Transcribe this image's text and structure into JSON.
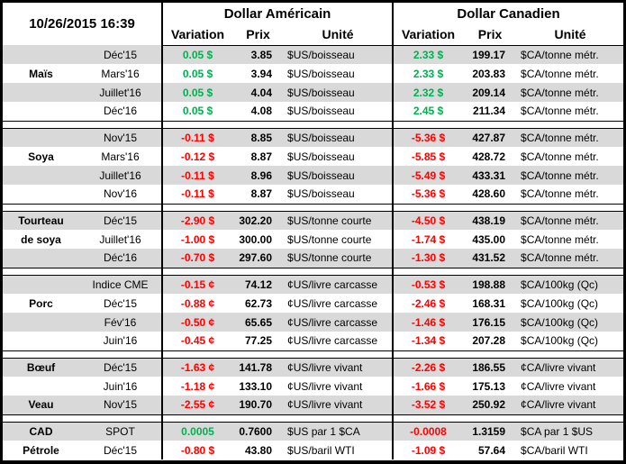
{
  "colors": {
    "positive": "#00B050",
    "negative": "#FF0000",
    "stripe": "#D9D9D9",
    "border": "#000000"
  },
  "header": {
    "timestamp": "10/26/2015 16:39",
    "group_us": "Dollar Américain",
    "group_ca": "Dollar Canadien",
    "col_variation": "Variation",
    "col_prix": "Prix",
    "col_unite": "Unité"
  },
  "sections": [
    {
      "rows": [
        {
          "name": "",
          "month": "Déc'15",
          "us_var": "0.05 $",
          "us_trend": "up",
          "us_prix": "3.85",
          "us_unit": "$US/boisseau",
          "ca_var": "2.33 $",
          "ca_trend": "up",
          "ca_prix": "199.17",
          "ca_unit": "$CA/tonne métr."
        },
        {
          "name": "Maïs",
          "month": "Mars'16",
          "us_var": "0.05 $",
          "us_trend": "up",
          "us_prix": "3.94",
          "us_unit": "$US/boisseau",
          "ca_var": "2.33 $",
          "ca_trend": "up",
          "ca_prix": "203.83",
          "ca_unit": "$CA/tonne métr."
        },
        {
          "name": "",
          "month": "Juillet'16",
          "us_var": "0.05 $",
          "us_trend": "up",
          "us_prix": "4.04",
          "us_unit": "$US/boisseau",
          "ca_var": "2.32 $",
          "ca_trend": "up",
          "ca_prix": "209.14",
          "ca_unit": "$CA/tonne métr."
        },
        {
          "name": "",
          "month": "Déc'16",
          "us_var": "0.05 $",
          "us_trend": "up",
          "us_prix": "4.08",
          "us_unit": "$US/boisseau",
          "ca_var": "2.45 $",
          "ca_trend": "up",
          "ca_prix": "211.34",
          "ca_unit": "$CA/tonne métr."
        }
      ]
    },
    {
      "rows": [
        {
          "name": "",
          "month": "Nov'15",
          "us_var": "-0.11 $",
          "us_trend": "down",
          "us_prix": "8.85",
          "us_unit": "$US/boisseau",
          "ca_var": "-5.36 $",
          "ca_trend": "down",
          "ca_prix": "427.87",
          "ca_unit": "$CA/tonne métr."
        },
        {
          "name": "Soya",
          "month": "Mars'16",
          "us_var": "-0.12 $",
          "us_trend": "down",
          "us_prix": "8.87",
          "us_unit": "$US/boisseau",
          "ca_var": "-5.85 $",
          "ca_trend": "down",
          "ca_prix": "428.72",
          "ca_unit": "$CA/tonne métr."
        },
        {
          "name": "",
          "month": "Juillet'16",
          "us_var": "-0.11 $",
          "us_trend": "down",
          "us_prix": "8.96",
          "us_unit": "$US/boisseau",
          "ca_var": "-5.49 $",
          "ca_trend": "down",
          "ca_prix": "433.31",
          "ca_unit": "$CA/tonne métr."
        },
        {
          "name": "",
          "month": "Nov'16",
          "us_var": "-0.11 $",
          "us_trend": "down",
          "us_prix": "8.87",
          "us_unit": "$US/boisseau",
          "ca_var": "-5.36 $",
          "ca_trend": "down",
          "ca_prix": "428.60",
          "ca_unit": "$CA/tonne métr."
        }
      ]
    },
    {
      "rows": [
        {
          "name": "Tourteau",
          "month": "Déc'15",
          "us_var": "-2.90 $",
          "us_trend": "down",
          "us_prix": "302.20",
          "us_unit": "$US/tonne courte",
          "ca_var": "-4.50 $",
          "ca_trend": "down",
          "ca_prix": "438.19",
          "ca_unit": "$CA/tonne métr."
        },
        {
          "name": "de soya",
          "month": "Juillet'16",
          "us_var": "-1.00 $",
          "us_trend": "down",
          "us_prix": "300.00",
          "us_unit": "$US/tonne courte",
          "ca_var": "-1.74 $",
          "ca_trend": "down",
          "ca_prix": "435.00",
          "ca_unit": "$CA/tonne métr."
        },
        {
          "name": "",
          "month": "Déc'16",
          "us_var": "-0.70 $",
          "us_trend": "down",
          "us_prix": "297.60",
          "us_unit": "$US/tonne courte",
          "ca_var": "-1.30 $",
          "ca_trend": "down",
          "ca_prix": "431.52",
          "ca_unit": "$CA/tonne métr."
        }
      ]
    },
    {
      "rows": [
        {
          "name": "",
          "month": "Indice CME",
          "us_var": "-0.15 ¢",
          "us_trend": "down",
          "us_prix": "74.12",
          "us_unit": "¢US/livre carcasse",
          "ca_var": "-0.53 $",
          "ca_trend": "down",
          "ca_prix": "198.88",
          "ca_unit": "$CA/100kg (Qc)"
        },
        {
          "name": "Porc",
          "month": "Déc'15",
          "us_var": "-0.88 ¢",
          "us_trend": "down",
          "us_prix": "62.73",
          "us_unit": "¢US/livre carcasse",
          "ca_var": "-2.46 $",
          "ca_trend": "down",
          "ca_prix": "168.31",
          "ca_unit": "$CA/100kg (Qc)"
        },
        {
          "name": "",
          "month": "Fév'16",
          "us_var": "-0.50 ¢",
          "us_trend": "down",
          "us_prix": "65.65",
          "us_unit": "¢US/livre carcasse",
          "ca_var": "-1.46 $",
          "ca_trend": "down",
          "ca_prix": "176.15",
          "ca_unit": "$CA/100kg (Qc)"
        },
        {
          "name": "",
          "month": "Juin'16",
          "us_var": "-0.45 ¢",
          "us_trend": "down",
          "us_prix": "77.25",
          "us_unit": "¢US/livre carcasse",
          "ca_var": "-1.34 $",
          "ca_trend": "down",
          "ca_prix": "207.28",
          "ca_unit": "$CA/100kg (Qc)"
        }
      ]
    },
    {
      "rows": [
        {
          "name": "Bœuf",
          "month": "Déc'15",
          "us_var": "-1.63 ¢",
          "us_trend": "down",
          "us_prix": "141.78",
          "us_unit": "¢US/livre vivant",
          "ca_var": "-2.26 $",
          "ca_trend": "down",
          "ca_prix": "186.55",
          "ca_unit": "¢CA/livre vivant"
        },
        {
          "name": "",
          "month": "Juin'16",
          "us_var": "-1.18 ¢",
          "us_trend": "down",
          "us_prix": "133.10",
          "us_unit": "¢US/livre vivant",
          "ca_var": "-1.66 $",
          "ca_trend": "down",
          "ca_prix": "175.13",
          "ca_unit": "¢CA/livre vivant"
        },
        {
          "name": "Veau",
          "month": "Nov'15",
          "us_var": "-2.55 ¢",
          "us_trend": "down",
          "us_prix": "190.70",
          "us_unit": "¢US/livre vivant",
          "ca_var": "-3.52 $",
          "ca_trend": "down",
          "ca_prix": "250.92",
          "ca_unit": "¢CA/livre vivant"
        }
      ]
    },
    {
      "rows": [
        {
          "name": "CAD",
          "month": "SPOT",
          "us_var": "0.0005",
          "us_trend": "up",
          "us_prix": "0.7600",
          "us_unit": "$US par 1 $CA",
          "ca_var": "-0.0008",
          "ca_trend": "down",
          "ca_prix": "1.3159",
          "ca_unit": "$CA par 1 $US"
        },
        {
          "name": "Pétrole",
          "month": "Déc'15",
          "us_var": "-0.80 $",
          "us_trend": "down",
          "us_prix": "43.80",
          "us_unit": "$US/baril WTI",
          "ca_var": "-1.09 $",
          "ca_trend": "down",
          "ca_prix": "57.64",
          "ca_unit": "$CA/baril WTI"
        }
      ]
    }
  ]
}
